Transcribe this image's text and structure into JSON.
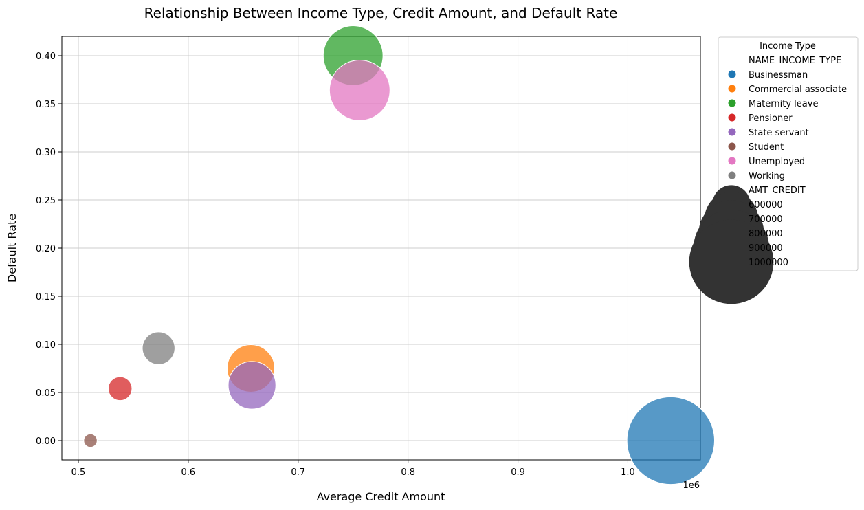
{
  "chart_data": {
    "type": "scatter",
    "title": "Relationship Between Income Type, Credit Amount, and Default Rate",
    "xlabel": "Average Credit Amount",
    "ylabel": "Default Rate",
    "x_offset_label": "1e6",
    "xlim": [
      485000,
      1066000
    ],
    "ylim": [
      -0.02,
      0.42
    ],
    "x_ticks": [
      500000,
      600000,
      700000,
      800000,
      900000,
      1000000
    ],
    "x_tick_labels": [
      "0.5",
      "0.6",
      "0.7",
      "0.8",
      "0.9",
      "1.0"
    ],
    "y_ticks": [
      0.0,
      0.05,
      0.1,
      0.15,
      0.2,
      0.25,
      0.3,
      0.35,
      0.4
    ],
    "y_tick_labels": [
      "0.00",
      "0.05",
      "0.10",
      "0.15",
      "0.20",
      "0.25",
      "0.30",
      "0.35",
      "0.40"
    ],
    "grid": true,
    "legend_placement": "outside-right",
    "legend_title": "Income Type",
    "hue_header": "NAME_INCOME_TYPE",
    "size_header": "AMT_CREDIT",
    "size_legend_values": [
      "600000",
      "700000",
      "800000",
      "900000",
      "1000000"
    ],
    "series": [
      {
        "name": "Businessman",
        "color": "#1f77b4",
        "x": 1039000,
        "y": 0.0,
        "size": 1039000
      },
      {
        "name": "Commercial associate",
        "color": "#ff7f0e",
        "x": 657000,
        "y": 0.075,
        "size": 657000
      },
      {
        "name": "Maternity leave",
        "color": "#2ca02c",
        "x": 750000,
        "y": 0.4,
        "size": 750000
      },
      {
        "name": "Pensioner",
        "color": "#d62728",
        "x": 538000,
        "y": 0.054,
        "size": 538000
      },
      {
        "name": "State servant",
        "color": "#9467bd",
        "x": 658000,
        "y": 0.0575,
        "size": 658000
      },
      {
        "name": "Student",
        "color": "#8c564b",
        "x": 511000,
        "y": 0.0,
        "size": 511000
      },
      {
        "name": "Unemployed",
        "color": "#e377c2",
        "x": 756000,
        "y": 0.364,
        "size": 756000
      },
      {
        "name": "Working",
        "color": "#7f7f7f",
        "x": 573000,
        "y": 0.096,
        "size": 573000
      }
    ]
  }
}
